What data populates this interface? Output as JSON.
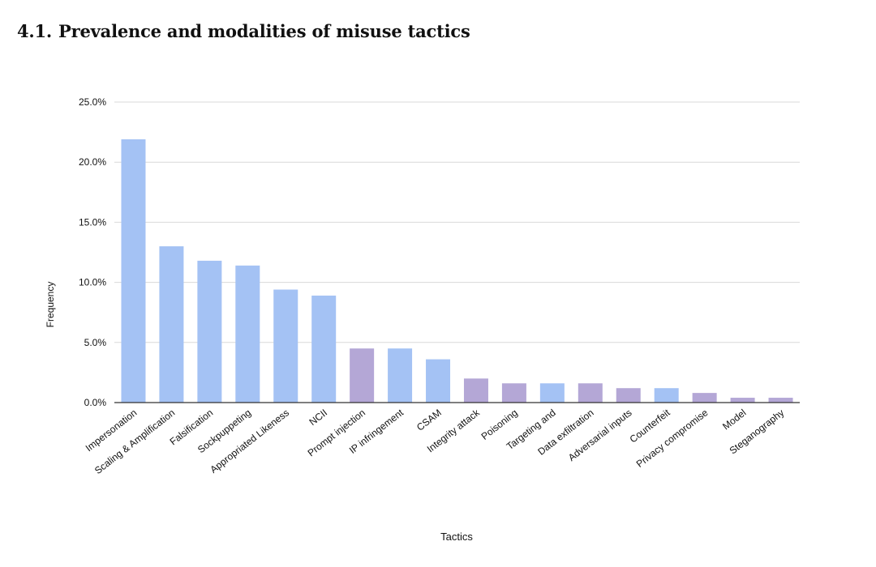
{
  "section": {
    "number": "4.1.",
    "title": "Prevalence and modalities of misuse tactics"
  },
  "colors": {
    "blue": "#a4c2f4",
    "purple": "#b4a7d6",
    "gridline": "#d9d9d9",
    "axis": "#333333"
  },
  "chart_data": {
    "type": "bar",
    "title": "",
    "xlabel": "Tactics",
    "ylabel": "Frequency",
    "ylim": [
      0,
      25
    ],
    "yticks": [
      "0.0%",
      "5.0%",
      "10.0%",
      "15.0%",
      "20.0%",
      "25.0%"
    ],
    "grid": true,
    "categories": [
      "Impersonation",
      "Scaling & Amplification",
      "Falsification",
      "Sockpuppeting",
      "Appropriated Likeness",
      "NCII",
      "Prompt injection",
      "IP infringement",
      "CSAM",
      "Integrity attack",
      "Poisoning",
      "Targeting and",
      "Data exfiltration",
      "Adversarial inputs",
      "Counterfeit",
      "Privacy compromise",
      "Model",
      "Steganography"
    ],
    "values": [
      21.9,
      13.0,
      11.8,
      11.4,
      9.4,
      8.9,
      4.5,
      4.5,
      3.6,
      2.0,
      1.6,
      1.6,
      1.6,
      1.2,
      1.2,
      0.8,
      0.4,
      0.4
    ],
    "bar_colors": [
      "blue",
      "blue",
      "blue",
      "blue",
      "blue",
      "blue",
      "purple",
      "blue",
      "blue",
      "purple",
      "purple",
      "blue",
      "purple",
      "purple",
      "blue",
      "purple",
      "purple",
      "purple"
    ]
  }
}
